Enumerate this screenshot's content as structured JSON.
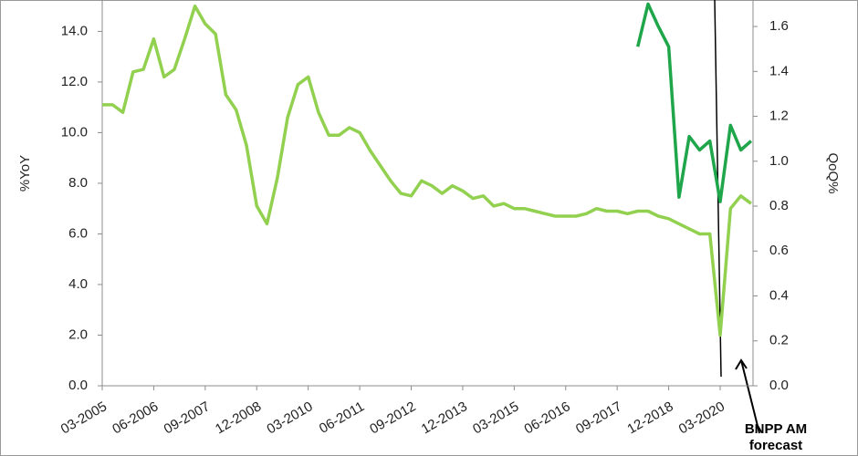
{
  "chart_data": {
    "type": "line",
    "y_label": "%YoY",
    "y2_label": "QoQ%",
    "annotation": "BNPP AM forecast",
    "categories": [
      "03-2005",
      null,
      null,
      null,
      null,
      "06-2006",
      null,
      null,
      null,
      null,
      "09-2007",
      null,
      null,
      null,
      null,
      "12-2008",
      null,
      null,
      null,
      null,
      "03-2010",
      null,
      null,
      null,
      null,
      "06-2011",
      null,
      null,
      null,
      null,
      "09-2012",
      null,
      null,
      null,
      null,
      "12-2013",
      null,
      null,
      null,
      null,
      "03-2015",
      null,
      null,
      null,
      null,
      "06-2016",
      null,
      null,
      null,
      null,
      "09-2017",
      null,
      null,
      null,
      null,
      "12-2018",
      null,
      null,
      null,
      null,
      "03-2020",
      null,
      null,
      null
    ],
    "series": [
      {
        "name": "YoY",
        "color": "#92d050",
        "axis": "y",
        "values": [
          11.1,
          11.1,
          10.8,
          12.4,
          12.5,
          13.7,
          12.2,
          12.5,
          13.7,
          15.0,
          14.3,
          13.9,
          11.5,
          10.9,
          9.5,
          7.1,
          6.4,
          8.2,
          10.6,
          11.9,
          12.2,
          10.8,
          9.9,
          9.9,
          10.2,
          10.0,
          9.3,
          8.7,
          8.1,
          7.6,
          7.5,
          8.1,
          7.9,
          7.6,
          7.9,
          7.7,
          7.4,
          7.5,
          7.1,
          7.2,
          7.0,
          7.0,
          6.9,
          6.8,
          6.7,
          6.7,
          6.7,
          6.8,
          7.0,
          6.9,
          6.9,
          6.8,
          6.9,
          6.9,
          6.7,
          6.6,
          6.4,
          6.2,
          6.0,
          6.0,
          2.0,
          7.0,
          7.5,
          7.2
        ]
      },
      {
        "name": "QoQ",
        "color": "#1fa64a",
        "axis": "y2",
        "values": [
          null,
          null,
          null,
          null,
          null,
          null,
          null,
          null,
          null,
          null,
          null,
          null,
          null,
          null,
          null,
          null,
          null,
          null,
          null,
          null,
          null,
          null,
          null,
          null,
          null,
          null,
          null,
          null,
          null,
          null,
          null,
          null,
          null,
          null,
          null,
          null,
          null,
          null,
          null,
          null,
          null,
          null,
          null,
          null,
          null,
          null,
          null,
          null,
          null,
          null,
          null,
          null,
          1.51,
          1.7,
          1.6,
          1.51,
          0.84,
          1.11,
          1.05,
          1.09,
          0.82,
          1.16,
          1.05,
          1.09
        ]
      }
    ],
    "ylim": [
      0,
      15.24
    ],
    "yticks": [
      {
        "value": 0,
        "label": "0.0"
      },
      {
        "value": 2,
        "label": "2.0"
      },
      {
        "value": 4,
        "label": "4.0"
      },
      {
        "value": 6,
        "label": "6.0"
      },
      {
        "value": 8,
        "label": "8.0"
      },
      {
        "value": 10,
        "label": "10.0"
      },
      {
        "value": 12,
        "label": "12.0"
      },
      {
        "value": 14,
        "label": "14.0"
      }
    ],
    "y2lim": [
      0,
      1.718
    ],
    "y2ticks": [
      {
        "value": 0,
        "label": "0.0"
      },
      0.2,
      0.4,
      0.6,
      0.8,
      {
        "value": 1,
        "label": "1.0"
      },
      1.2,
      1.4,
      1.6
    ]
  }
}
